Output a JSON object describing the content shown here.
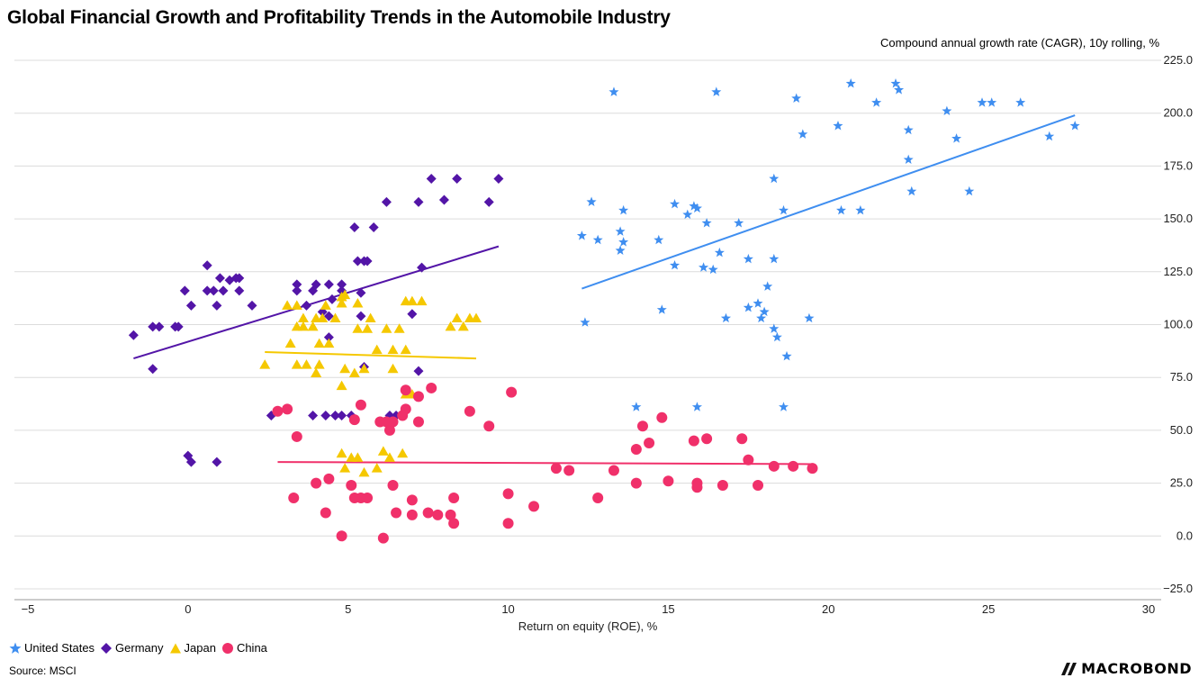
{
  "chart_data": {
    "type": "scatter",
    "title": "Global Financial Growth and Profitability Trends in the Automobile Industry",
    "xlabel": "Return on equity (ROE), %",
    "ylabel": "Compound annual growth rate (CAGR), 10y rolling, %",
    "xlim": [
      -5,
      30
    ],
    "ylim": [
      -25,
      225
    ],
    "xticks": [
      -5,
      0,
      5,
      10,
      15,
      20,
      25,
      30
    ],
    "yticks": [
      -25,
      0,
      25,
      50,
      75,
      100,
      125,
      150,
      175,
      200,
      225
    ],
    "ytick_labels": [
      "−25.0",
      "0.0",
      "25.0",
      "50.0",
      "75.0",
      "100.0",
      "125.0",
      "150.0",
      "175.0",
      "200.0",
      "225.0"
    ],
    "xtick_labels": [
      "−5",
      "0",
      "5",
      "10",
      "15",
      "20",
      "25",
      "30"
    ],
    "grid": true,
    "legend_position": "bottom-left",
    "series": [
      {
        "name": "United States",
        "marker": "star",
        "color": "#3F8EF0",
        "trendline": [
          [
            12.3,
            117
          ],
          [
            27.7,
            199
          ]
        ],
        "points": [
          [
            13.3,
            210
          ],
          [
            16.5,
            210
          ],
          [
            20.7,
            214
          ],
          [
            22.1,
            214
          ],
          [
            22.2,
            211
          ],
          [
            19,
            207
          ],
          [
            21.5,
            205
          ],
          [
            23.7,
            201
          ],
          [
            24.8,
            205
          ],
          [
            25.1,
            205
          ],
          [
            26,
            205
          ],
          [
            27.7,
            194
          ],
          [
            26.9,
            189
          ],
          [
            20.3,
            194
          ],
          [
            19.2,
            190
          ],
          [
            22.5,
            192
          ],
          [
            24,
            188
          ],
          [
            22.5,
            178
          ],
          [
            22.6,
            163
          ],
          [
            24.4,
            163
          ],
          [
            18.3,
            169
          ],
          [
            12.6,
            158
          ],
          [
            13.6,
            154
          ],
          [
            15.2,
            157
          ],
          [
            15.8,
            156
          ],
          [
            15.9,
            155
          ],
          [
            16.2,
            148
          ],
          [
            15.6,
            152
          ],
          [
            17.2,
            148
          ],
          [
            18.6,
            154
          ],
          [
            20.4,
            154
          ],
          [
            21,
            154
          ],
          [
            13.5,
            144
          ],
          [
            12.3,
            142
          ],
          [
            12.8,
            140
          ],
          [
            13.6,
            139
          ],
          [
            13.5,
            135
          ],
          [
            14.7,
            140
          ],
          [
            16.6,
            134
          ],
          [
            15.2,
            128
          ],
          [
            16.1,
            127
          ],
          [
            16.4,
            126
          ],
          [
            17.5,
            131
          ],
          [
            18.3,
            131
          ],
          [
            18.1,
            118
          ],
          [
            12.4,
            101
          ],
          [
            14.8,
            107
          ],
          [
            16.8,
            103
          ],
          [
            17.5,
            108
          ],
          [
            17.8,
            110
          ],
          [
            17.9,
            103
          ],
          [
            18,
            106
          ],
          [
            18.3,
            98
          ],
          [
            18.4,
            94
          ],
          [
            18.7,
            85
          ],
          [
            19.4,
            103
          ],
          [
            14,
            61
          ],
          [
            15.9,
            61
          ],
          [
            18.6,
            61
          ]
        ]
      },
      {
        "name": "Germany",
        "marker": "diamond",
        "color": "#5315A7",
        "trendline": [
          [
            -1.7,
            84
          ],
          [
            9.7,
            137
          ]
        ],
        "points": [
          [
            -1.7,
            95
          ],
          [
            -1.1,
            99
          ],
          [
            -0.9,
            99
          ],
          [
            -0.4,
            99
          ],
          [
            -0.3,
            99
          ],
          [
            -1.1,
            79
          ],
          [
            -0.1,
            116
          ],
          [
            0.1,
            109
          ],
          [
            0.6,
            128
          ],
          [
            0.6,
            116
          ],
          [
            0.8,
            116
          ],
          [
            0.9,
            109
          ],
          [
            1,
            122
          ],
          [
            1.1,
            116
          ],
          [
            1.3,
            121
          ],
          [
            1.5,
            122
          ],
          [
            1.6,
            116
          ],
          [
            1.6,
            122
          ],
          [
            2,
            109
          ],
          [
            0,
            38
          ],
          [
            0.1,
            35
          ],
          [
            0.9,
            35
          ],
          [
            2.6,
            57
          ],
          [
            3.4,
            116
          ],
          [
            3.4,
            119
          ],
          [
            3.7,
            109
          ],
          [
            3.9,
            116
          ],
          [
            4,
            119
          ],
          [
            4.4,
            119
          ],
          [
            4.2,
            106
          ],
          [
            4.4,
            104
          ],
          [
            4.5,
            112
          ],
          [
            4.8,
            116
          ],
          [
            4.8,
            119
          ],
          [
            4.4,
            94
          ],
          [
            5.2,
            146
          ],
          [
            5.3,
            130
          ],
          [
            5.5,
            130
          ],
          [
            5.6,
            130
          ],
          [
            5.4,
            115
          ],
          [
            5.8,
            146
          ],
          [
            6.2,
            158
          ],
          [
            5.5,
            80
          ],
          [
            5.4,
            104
          ],
          [
            7.2,
            158
          ],
          [
            7.6,
            169
          ],
          [
            8,
            159
          ],
          [
            8.4,
            169
          ],
          [
            7.3,
            127
          ],
          [
            7,
            105
          ],
          [
            7.2,
            78
          ],
          [
            9.4,
            158
          ],
          [
            9.7,
            169
          ],
          [
            3.9,
            57
          ],
          [
            4.3,
            57
          ],
          [
            4.6,
            57
          ],
          [
            4.8,
            57
          ],
          [
            5.1,
            57
          ],
          [
            6.3,
            57
          ],
          [
            6.5,
            57
          ]
        ]
      },
      {
        "name": "Japan",
        "marker": "triangle",
        "color": "#F5C800",
        "trendline": [
          [
            2.4,
            87
          ],
          [
            9,
            84
          ]
        ],
        "points": [
          [
            2.4,
            81
          ],
          [
            3.1,
            109
          ],
          [
            3.2,
            91
          ],
          [
            3.4,
            109
          ],
          [
            3.4,
            81
          ],
          [
            3.4,
            99
          ],
          [
            3.6,
            103
          ],
          [
            3.6,
            99
          ],
          [
            3.7,
            81
          ],
          [
            3.9,
            99
          ],
          [
            4,
            77
          ],
          [
            4.1,
            81
          ],
          [
            4,
            77
          ],
          [
            4.1,
            91
          ],
          [
            4,
            103
          ],
          [
            4.2,
            103
          ],
          [
            4.4,
            91
          ],
          [
            4.3,
            109
          ],
          [
            4.6,
            103
          ],
          [
            4.8,
            110
          ],
          [
            4.8,
            113
          ],
          [
            4.9,
            114
          ],
          [
            4.8,
            71
          ],
          [
            4.9,
            79
          ],
          [
            5.2,
            77
          ],
          [
            5.3,
            110
          ],
          [
            5.7,
            103
          ],
          [
            5.3,
            98
          ],
          [
            5.6,
            98
          ],
          [
            5.5,
            79
          ],
          [
            5.9,
            88
          ],
          [
            6.2,
            98
          ],
          [
            6.4,
            79
          ],
          [
            6.4,
            88
          ],
          [
            6.8,
            111
          ],
          [
            6.6,
            98
          ],
          [
            6.8,
            88
          ],
          [
            6.8,
            67
          ],
          [
            7,
            111
          ],
          [
            7.3,
            111
          ],
          [
            7,
            67
          ],
          [
            8.2,
            99
          ],
          [
            8.4,
            103
          ],
          [
            8.6,
            99
          ],
          [
            8.8,
            103
          ],
          [
            9,
            103
          ],
          [
            4.8,
            39
          ],
          [
            5.1,
            37
          ],
          [
            5.3,
            37
          ],
          [
            5.5,
            30
          ],
          [
            5.9,
            32
          ],
          [
            6.1,
            40
          ],
          [
            6.3,
            37
          ],
          [
            6.7,
            39
          ],
          [
            4.9,
            32
          ]
        ]
      },
      {
        "name": "China",
        "marker": "circle",
        "color": "#F0306A",
        "trendline": [
          [
            2.8,
            35
          ],
          [
            19.5,
            34
          ]
        ],
        "points": [
          [
            2.8,
            59
          ],
          [
            3.1,
            60
          ],
          [
            3.4,
            47
          ],
          [
            3.3,
            18
          ],
          [
            4,
            25
          ],
          [
            4.3,
            11
          ],
          [
            4.4,
            27
          ],
          [
            4.8,
            0
          ],
          [
            5.1,
            24
          ],
          [
            5.2,
            18
          ],
          [
            5.2,
            55
          ],
          [
            5.4,
            18
          ],
          [
            5.4,
            62
          ],
          [
            5.6,
            18
          ],
          [
            6,
            54
          ],
          [
            6.1,
            -1
          ],
          [
            6.2,
            54
          ],
          [
            6.3,
            50
          ],
          [
            6.4,
            54
          ],
          [
            6.4,
            24
          ],
          [
            6.5,
            11
          ],
          [
            6.7,
            57
          ],
          [
            6.8,
            60
          ],
          [
            6.8,
            69
          ],
          [
            7,
            17
          ],
          [
            7,
            10
          ],
          [
            7.2,
            66
          ],
          [
            7.2,
            54
          ],
          [
            7.5,
            11
          ],
          [
            7.6,
            70
          ],
          [
            7.8,
            10
          ],
          [
            8.2,
            10
          ],
          [
            8.3,
            6
          ],
          [
            8.3,
            18
          ],
          [
            8.8,
            59
          ],
          [
            9.4,
            52
          ],
          [
            10,
            20
          ],
          [
            10.1,
            68
          ],
          [
            10,
            6
          ],
          [
            10.8,
            14
          ],
          [
            11.5,
            32
          ],
          [
            11.9,
            31
          ],
          [
            12.8,
            18
          ],
          [
            13.3,
            31
          ],
          [
            14,
            25
          ],
          [
            14,
            41
          ],
          [
            14.2,
            52
          ],
          [
            14.4,
            44
          ],
          [
            14.8,
            56
          ],
          [
            15,
            26
          ],
          [
            15.8,
            45
          ],
          [
            15.9,
            25
          ],
          [
            15.9,
            23
          ],
          [
            16.2,
            46
          ],
          [
            16.7,
            24
          ],
          [
            17.3,
            46
          ],
          [
            17.5,
            36
          ],
          [
            17.8,
            24
          ],
          [
            18.3,
            33
          ],
          [
            18.9,
            33
          ],
          [
            19.5,
            32
          ]
        ]
      }
    ]
  },
  "source": "Source: MSCI",
  "brand": "MACROBOND"
}
